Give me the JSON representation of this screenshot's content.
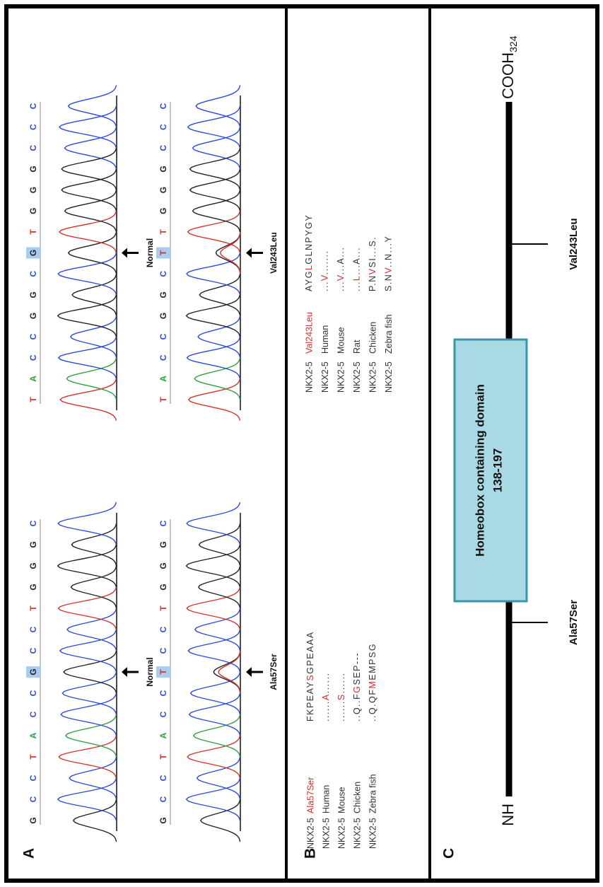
{
  "panel_a": {
    "label": "A",
    "pairs": [
      {
        "normal": {
          "before": [
            "G",
            "C",
            "C",
            "T",
            "A",
            "C",
            "C"
          ],
          "site": "G",
          "after": [
            "C",
            "C",
            "T",
            "G",
            "G",
            "G",
            "C"
          ]
        },
        "mutant": {
          "before": [
            "G",
            "C",
            "C",
            "T",
            "A",
            "C",
            "C"
          ],
          "site": "T",
          "after": [
            "C",
            "C",
            "T",
            "G",
            "G",
            "G",
            "C"
          ]
        },
        "normal_label": "Normal",
        "mutant_label": "Ala57Ser"
      },
      {
        "normal": {
          "before": [
            "T",
            "A",
            "C",
            "C",
            "G",
            "G",
            "C"
          ],
          "site": "G",
          "after": [
            "T",
            "G",
            "G",
            "G",
            "C",
            "C",
            "C"
          ]
        },
        "mutant": {
          "before": [
            "T",
            "A",
            "C",
            "C",
            "G",
            "G",
            "C"
          ],
          "site": "T",
          "after": [
            "T",
            "G",
            "G",
            "G",
            "C",
            "C",
            "C"
          ]
        },
        "normal_label": "Normal",
        "mutant_label": "Val243Leu"
      }
    ]
  },
  "panel_b": {
    "label": "B",
    "alignments": [
      {
        "variant": {
          "gene": "NKX2-5",
          "label": "Ala57Ser",
          "sequence": [
            "FKPEAY",
            "S",
            "GPEAAA"
          ]
        },
        "rows": [
          {
            "gene": "NKX2-5",
            "species": "Human",
            "sequence": [
              "......",
              "A",
              "......"
            ]
          },
          {
            "gene": "NKX2-5",
            "species": "Mouse",
            "sequence": [
              "......",
              "S",
              "......"
            ]
          },
          {
            "gene": "NKX2-5",
            "species": "Chicken",
            "sequence": [
              "..Q..F",
              "G",
              "SEP---"
            ]
          },
          {
            "gene": "NKX2-5",
            "species": "Zebra fish",
            "sequence": [
              "..Q.QF",
              "M",
              "EMPSG"
            ]
          }
        ]
      },
      {
        "variant": {
          "gene": "NKX2-5",
          "label": "Val243Leu",
          "sequence": [
            "AYG",
            "L",
            "GLNPYGY"
          ]
        },
        "rows": [
          {
            "gene": "NKX2-5",
            "species": "Human",
            "sequence": [
              "...",
              "V",
              "......."
            ]
          },
          {
            "gene": "NKX2-5",
            "species": "Mouse",
            "sequence": [
              "...",
              "V",
              "...A..."
            ]
          },
          {
            "gene": "NKX2-5",
            "species": "Rat",
            "sequence": [
              "...",
              "L",
              "...A..."
            ]
          },
          {
            "gene": "NKX2-5",
            "species": "Chicken",
            "sequence": [
              "P.N",
              "V",
              "SI...S."
            ]
          },
          {
            "gene": "NKX2-5",
            "species": "Zebra fish",
            "sequence": [
              "S.N",
              "V",
              "..N...Y"
            ]
          }
        ]
      }
    ]
  },
  "panel_c": {
    "label": "C",
    "n_terminus": "NH",
    "c_terminus": "COOH",
    "c_terminus_subscript": "324",
    "domain_name": "Homeobox containing domain",
    "domain_range": "138-197",
    "mutations": [
      "Ala57Ser",
      "Val243Leu"
    ]
  }
}
